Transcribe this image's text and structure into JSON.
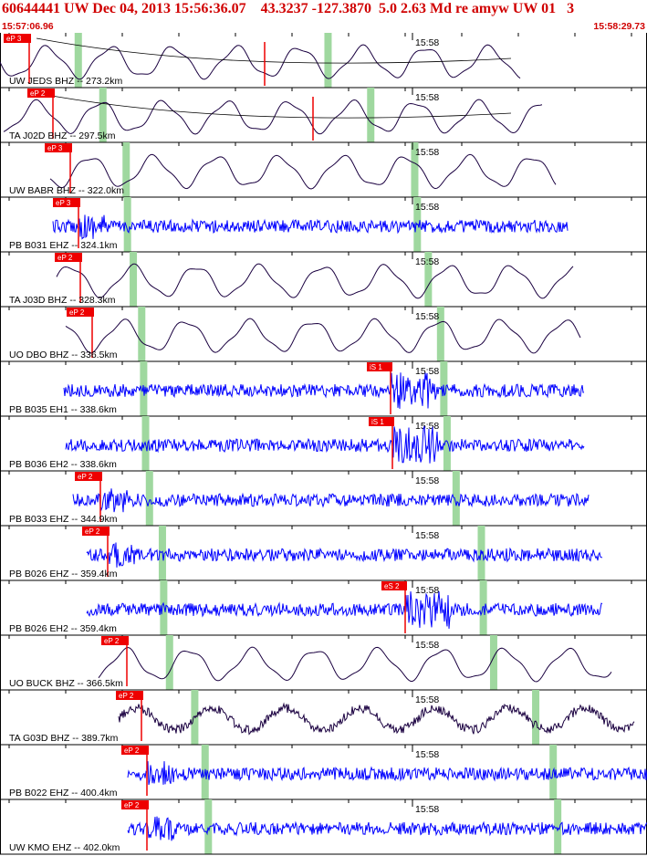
{
  "header": {
    "title": "60644441 UW Dec 04, 2013 15:56:36.07    43.3237 -127.3870  5.0 2.63 Md re amyw UW 01   3",
    "time_start": "15:57:06.96",
    "time_end": "15:58:29.73"
  },
  "time_marker_label": "15:58",
  "colors": {
    "header_text": "#d00000",
    "pick_box": "#ee0000",
    "highfreq_trace": "#0000ff",
    "lowfreq_trace": "#1a0040",
    "window_band": "#9fd89f",
    "background": "#ffffff"
  },
  "traces": [
    {
      "station": "UW JEDS BHZ -- 273.2km",
      "pick": "eP 3",
      "type": "lf",
      "band1": 0.121,
      "band2": 0.507,
      "second_pick": "",
      "curve": true
    },
    {
      "station": "TA J02D BHZ -- 297.5km",
      "pick": "eP 2",
      "type": "lf",
      "band1": 0.159,
      "band2": 0.573,
      "second_pick": "",
      "curve": true
    },
    {
      "station": "UW BABR BHZ -- 322.0km",
      "pick": "eP 3",
      "type": "lf",
      "band1": 0.195,
      "band2": 0.641,
      "second_pick": "",
      "curve": false
    },
    {
      "station": "PB B031 EHZ -- 324.1km",
      "pick": "eP 3",
      "type": "hf",
      "band1": 0.197,
      "band2": 0.645,
      "second_pick": "",
      "curve": false
    },
    {
      "station": "TA J03D BHZ -- 328.3km",
      "pick": "eP 2",
      "type": "lf",
      "band1": 0.206,
      "band2": 0.662,
      "second_pick": "",
      "curve": false
    },
    {
      "station": "UO DBO BHZ -- 336.5km",
      "pick": "eP 2",
      "type": "lf",
      "band1": 0.219,
      "band2": 0.681,
      "second_pick": "",
      "curve": false
    },
    {
      "station": "PB B035 EH1 -- 338.6km",
      "pick": "",
      "type": "hf",
      "band1": 0.222,
      "band2": 0.686,
      "second_pick": "iS 1",
      "curve": false
    },
    {
      "station": "PB B036 EH2 -- 338.6km",
      "pick": "",
      "type": "hf",
      "band1": 0.225,
      "band2": 0.691,
      "second_pick": "iS 1",
      "curve": false
    },
    {
      "station": "PB B033 EHZ -- 344.9km",
      "pick": "eP 2",
      "type": "hf",
      "band1": 0.231,
      "band2": 0.705,
      "second_pick": "",
      "curve": false
    },
    {
      "station": "PB B026 EHZ -- 359.4km",
      "pick": "eP 2",
      "type": "hf",
      "band1": 0.251,
      "band2": 0.744,
      "second_pick": "",
      "curve": false
    },
    {
      "station": "PB B026 EH2 -- 359.4km",
      "pick": "",
      "type": "hf",
      "band1": 0.253,
      "band2": 0.747,
      "second_pick": "eS 2",
      "curve": false
    },
    {
      "station": "UO BUCK BHZ -- 366.5km",
      "pick": "eP 2",
      "type": "lf",
      "band1": 0.262,
      "band2": 0.763,
      "second_pick": "",
      "curve": false
    },
    {
      "station": "TA G03D BHZ -- 389.7km",
      "pick": "eP 2",
      "type": "mf",
      "band1": 0.301,
      "band2": 0.828,
      "second_pick": "",
      "curve": false
    },
    {
      "station": "PB B022 EHZ -- 400.4km",
      "pick": "eP 2",
      "type": "hf",
      "band1": 0.317,
      "band2": 0.855,
      "second_pick": "",
      "curve": false
    },
    {
      "station": "UW KMO EHZ -- 402.0km",
      "pick": "eP 2",
      "type": "hf",
      "band1": 0.322,
      "band2": 0.862,
      "second_pick": "",
      "curve": false
    }
  ]
}
